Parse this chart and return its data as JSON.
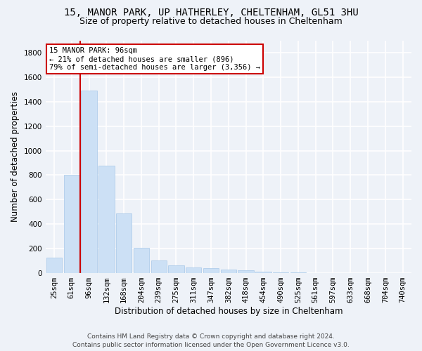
{
  "title_line1": "15, MANOR PARK, UP HATHERLEY, CHELTENHAM, GL51 3HU",
  "title_line2": "Size of property relative to detached houses in Cheltenham",
  "xlabel": "Distribution of detached houses by size in Cheltenham",
  "ylabel": "Number of detached properties",
  "categories": [
    "25sqm",
    "61sqm",
    "96sqm",
    "132sqm",
    "168sqm",
    "204sqm",
    "239sqm",
    "275sqm",
    "311sqm",
    "347sqm",
    "382sqm",
    "418sqm",
    "454sqm",
    "490sqm",
    "525sqm",
    "561sqm",
    "597sqm",
    "633sqm",
    "668sqm",
    "704sqm",
    "740sqm"
  ],
  "values": [
    125,
    800,
    1490,
    880,
    490,
    205,
    105,
    65,
    45,
    40,
    30,
    22,
    10,
    4,
    4,
    2,
    2,
    0,
    0,
    0,
    0
  ],
  "bar_color": "#cce0f5",
  "bar_edge_color": "#a8c8e8",
  "highlight_index": 2,
  "vline_color": "#cc0000",
  "annotation_text": "15 MANOR PARK: 96sqm\n← 21% of detached houses are smaller (896)\n79% of semi-detached houses are larger (3,356) →",
  "annotation_box_color": "#ffffff",
  "annotation_box_edge": "#cc0000",
  "ylim": [
    0,
    1900
  ],
  "yticks": [
    0,
    200,
    400,
    600,
    800,
    1000,
    1200,
    1400,
    1600,
    1800
  ],
  "footer_line1": "Contains HM Land Registry data © Crown copyright and database right 2024.",
  "footer_line2": "Contains public sector information licensed under the Open Government Licence v3.0.",
  "background_color": "#eef2f8",
  "grid_color": "#ffffff",
  "title_fontsize": 10,
  "subtitle_fontsize": 9,
  "axis_label_fontsize": 8.5,
  "tick_fontsize": 7.5,
  "footer_fontsize": 6.5
}
